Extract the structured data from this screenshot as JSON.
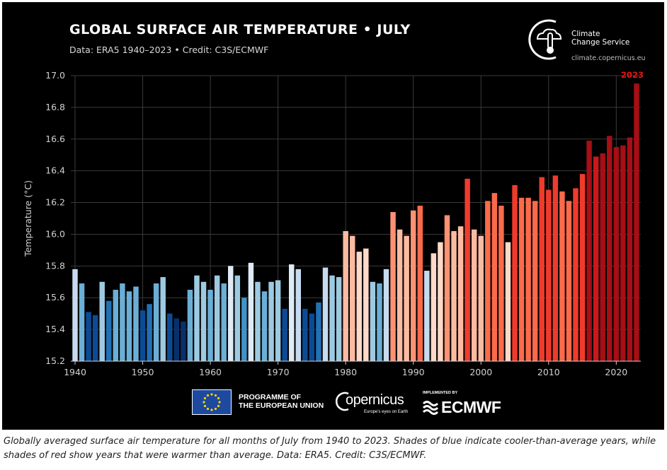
{
  "header": {
    "title": "GLOBAL SURFACE AIR TEMPERATURE • JULY",
    "subtitle": "Data: ERA5 1940–2023 • Credit: C3S/ECMWF"
  },
  "c3s": {
    "name_line1": "Climate",
    "name_line2": "Change Service",
    "url": "climate.copernicus.eu"
  },
  "footer": {
    "eu_line1": "PROGRAMME OF",
    "eu_line2": "THE EUROPEAN UNION",
    "copernicus_name": "opernicus",
    "copernicus_tag": "Europe's eyes on Earth",
    "ecmwf_implemented": "IMPLEMENTED BY",
    "ecmwf_name": "ECMWF"
  },
  "caption": "Globally averaged surface air temperature for all months of July from 1940 to 2023. Shades of blue indicate cooler-than-average years, while shades of red show years that were warmer than average. Data: ERA5. Credit: C3S/ECMWF.",
  "chart_data": {
    "type": "bar",
    "ylabel": "Temperature (°C)",
    "ylim": [
      15.2,
      17.0
    ],
    "yticks": [
      "15.2",
      "15.4",
      "15.6",
      "15.8",
      "16.0",
      "16.2",
      "16.4",
      "16.6",
      "16.8",
      "17.0"
    ],
    "xticks": [
      "1940",
      "1950",
      "1960",
      "1970",
      "1980",
      "1990",
      "2000",
      "2010",
      "2020"
    ],
    "grid": true,
    "highlight_label": "2023",
    "highlight_color": "#e8160f",
    "x": [
      1940,
      1941,
      1942,
      1943,
      1944,
      1945,
      1946,
      1947,
      1948,
      1949,
      1950,
      1951,
      1952,
      1953,
      1954,
      1955,
      1956,
      1957,
      1958,
      1959,
      1960,
      1961,
      1962,
      1963,
      1964,
      1965,
      1966,
      1967,
      1968,
      1969,
      1970,
      1971,
      1972,
      1973,
      1974,
      1975,
      1976,
      1977,
      1978,
      1979,
      1980,
      1981,
      1982,
      1983,
      1984,
      1985,
      1986,
      1987,
      1988,
      1989,
      1990,
      1991,
      1992,
      1993,
      1994,
      1995,
      1996,
      1997,
      1998,
      1999,
      2000,
      2001,
      2002,
      2003,
      2004,
      2005,
      2006,
      2007,
      2008,
      2009,
      2010,
      2011,
      2012,
      2013,
      2014,
      2015,
      2016,
      2017,
      2018,
      2019,
      2020,
      2021,
      2022,
      2023
    ],
    "values": [
      15.78,
      15.69,
      15.51,
      15.49,
      15.7,
      15.58,
      15.65,
      15.69,
      15.64,
      15.67,
      15.52,
      15.56,
      15.69,
      15.73,
      15.5,
      15.47,
      15.45,
      15.65,
      15.74,
      15.7,
      15.65,
      15.74,
      15.69,
      15.8,
      15.74,
      15.6,
      15.82,
      15.7,
      15.64,
      15.7,
      15.71,
      15.53,
      15.81,
      15.78,
      15.53,
      15.5,
      15.57,
      15.79,
      15.74,
      15.73,
      16.02,
      15.99,
      15.89,
      15.91,
      15.7,
      15.69,
      15.78,
      16.14,
      16.03,
      15.99,
      16.15,
      16.18,
      15.77,
      15.88,
      15.95,
      16.12,
      16.02,
      16.05,
      16.35,
      16.03,
      15.99,
      16.21,
      16.26,
      16.18,
      15.95,
      16.31,
      16.23,
      16.23,
      16.21,
      16.36,
      16.28,
      16.37,
      16.27,
      16.21,
      16.29,
      16.38,
      16.59,
      16.49,
      16.51,
      16.62,
      16.55,
      16.56,
      16.61,
      16.95
    ]
  }
}
